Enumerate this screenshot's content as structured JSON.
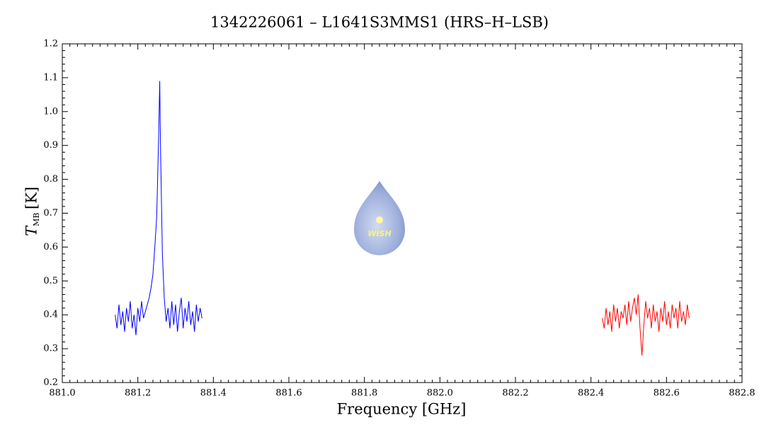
{
  "chart_data": {
    "type": "line",
    "title": "1342226061 – L1641S3MMS1 (HRS–H–LSB)",
    "x_label": "Frequency [GHz]",
    "y_label": "T",
    "y_label_sub": "MB",
    "y_label_unit": "[K]",
    "watermark": "WISH",
    "xlim": [
      881.0,
      882.8
    ],
    "xticks": [
      {
        "value": 881.0,
        "label": "881.0"
      },
      881.2,
      881.4,
      881.6,
      881.8,
      {
        "value": 882.0,
        "label": "882.0"
      },
      882.2,
      882.4,
      882.6,
      882.8
    ],
    "ylim": [
      0.2,
      1.2
    ],
    "yticks": [
      0.2,
      0.3,
      0.4,
      0.5,
      0.6,
      0.7,
      0.8,
      0.9,
      {
        "value": 1.0,
        "label": "1.0"
      },
      1.1,
      1.2
    ],
    "series": [
      {
        "color": "#0000ff",
        "x": [
          881.14,
          881.145,
          881.15,
          881.155,
          881.16,
          881.165,
          881.17,
          881.175,
          881.18,
          881.185,
          881.19,
          881.195,
          881.2,
          881.205,
          881.21,
          881.215,
          881.22,
          881.225,
          881.23,
          881.235,
          881.24,
          881.245,
          881.25,
          881.255,
          881.258,
          881.26,
          881.265,
          881.27,
          881.275,
          881.28,
          881.285,
          881.29,
          881.295,
          881.3,
          881.305,
          881.31,
          881.315,
          881.32,
          881.325,
          881.33,
          881.335,
          881.34,
          881.345,
          881.35,
          881.355,
          881.36,
          881.365,
          881.37
        ],
        "values": [
          0.4,
          0.36,
          0.43,
          0.37,
          0.41,
          0.35,
          0.42,
          0.38,
          0.44,
          0.36,
          0.4,
          0.34,
          0.42,
          0.38,
          0.44,
          0.39,
          0.41,
          0.43,
          0.45,
          0.48,
          0.52,
          0.6,
          0.69,
          0.92,
          1.09,
          0.9,
          0.58,
          0.45,
          0.38,
          0.42,
          0.36,
          0.44,
          0.37,
          0.43,
          0.35,
          0.41,
          0.45,
          0.36,
          0.42,
          0.38,
          0.44,
          0.37,
          0.41,
          0.35,
          0.43,
          0.38,
          0.42,
          0.39
        ]
      },
      {
        "color": "#ff0000",
        "x": [
          882.43,
          882.435,
          882.44,
          882.445,
          882.45,
          882.455,
          882.46,
          882.465,
          882.47,
          882.475,
          882.48,
          882.485,
          882.49,
          882.495,
          882.5,
          882.505,
          882.51,
          882.515,
          882.52,
          882.525,
          882.53,
          882.535,
          882.54,
          882.545,
          882.55,
          882.555,
          882.56,
          882.565,
          882.57,
          882.575,
          882.58,
          882.585,
          882.59,
          882.595,
          882.6,
          882.605,
          882.61,
          882.615,
          882.62,
          882.625,
          882.63,
          882.635,
          882.64,
          882.645,
          882.65,
          882.655,
          882.66
        ],
        "values": [
          0.39,
          0.36,
          0.42,
          0.37,
          0.41,
          0.35,
          0.43,
          0.38,
          0.42,
          0.36,
          0.41,
          0.39,
          0.43,
          0.37,
          0.44,
          0.38,
          0.42,
          0.45,
          0.4,
          0.46,
          0.36,
          0.28,
          0.37,
          0.44,
          0.39,
          0.42,
          0.36,
          0.43,
          0.38,
          0.41,
          0.35,
          0.42,
          0.38,
          0.44,
          0.37,
          0.41,
          0.36,
          0.43,
          0.39,
          0.42,
          0.36,
          0.44,
          0.38,
          0.41,
          0.37,
          0.43,
          0.39
        ]
      }
    ]
  }
}
